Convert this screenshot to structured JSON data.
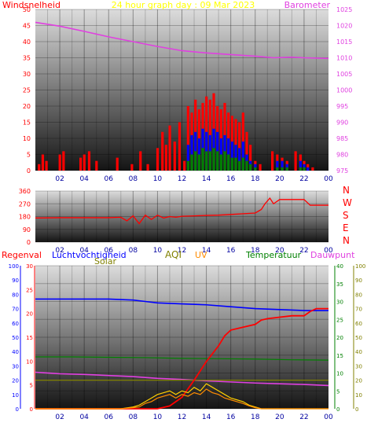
{
  "colors": {
    "wind": "#ff0000",
    "gust": "#0000ff",
    "avg": "#008000",
    "barometer": "#e040e0",
    "direction": "#ff0000",
    "rain": "#ff0000",
    "humidity": "#0000ff",
    "temperature": "#008000",
    "dewpoint": "#e040e0",
    "uv": "#ff8c00",
    "solar": "#808000",
    "aqi": "#808000",
    "title": "#ffff00"
  },
  "chart_data": [
    {
      "type": "bar",
      "title": "24 hour graph day : 09 Mar 2023",
      "left_axis_label": "Windsnelheid",
      "right_axis_label": "Barometer",
      "x_ticks": [
        "02",
        "04",
        "06",
        "08",
        "10",
        "12",
        "14",
        "16",
        "18",
        "20",
        "22",
        "00"
      ],
      "x_range": [
        0,
        24
      ],
      "y_left_ticks": [
        "0",
        "5",
        "10",
        "15",
        "20",
        "25",
        "30",
        "35",
        "40",
        "45",
        "50"
      ],
      "y_left_range": [
        0,
        50
      ],
      "y_right_ticks": [
        "975",
        "980",
        "985",
        "990",
        "995",
        "1000",
        "1005",
        "1010",
        "1015",
        "1020",
        "1025"
      ],
      "y_right_range": [
        975,
        1025
      ],
      "series": [
        {
          "name": "gust",
          "kind": "bars",
          "x": [
            0.3,
            0.6,
            0.9,
            2.0,
            2.3,
            3.7,
            4.0,
            4.4,
            5.0,
            6.7,
            7.9,
            8.6,
            9.2,
            10.0,
            10.4,
            10.7,
            11.0,
            11.4,
            11.8,
            12.2,
            12.5,
            12.8,
            13.1,
            13.4,
            13.7,
            14.0,
            14.3,
            14.6,
            14.9,
            15.2,
            15.5,
            15.8,
            16.1,
            16.4,
            16.7,
            17.0,
            17.3,
            17.6,
            18.0,
            18.4,
            19.4,
            19.8,
            20.2,
            20.6,
            21.3,
            21.7,
            22.0,
            22.3,
            22.7
          ],
          "values": [
            2,
            5,
            3,
            5,
            6,
            4,
            5,
            6,
            3,
            4,
            2,
            6,
            2,
            7,
            12,
            8,
            14,
            9,
            15,
            3,
            20,
            18,
            22,
            19,
            21,
            23,
            22,
            24,
            20,
            19,
            21,
            18,
            17,
            16,
            15,
            18,
            12,
            8,
            3,
            2,
            6,
            5,
            4,
            3,
            6,
            5,
            3,
            2,
            1
          ]
        },
        {
          "name": "wind",
          "kind": "bars",
          "x": [
            12.5,
            12.8,
            13.1,
            13.4,
            13.7,
            14.0,
            14.3,
            14.6,
            14.9,
            15.2,
            15.5,
            15.8,
            16.1,
            16.4,
            16.7,
            17.0,
            17.3,
            17.6,
            18.0,
            19.8,
            20.2,
            20.6,
            21.7,
            22.0,
            22.3
          ],
          "values": [
            8,
            11,
            12,
            10,
            13,
            12,
            11,
            13,
            12,
            10,
            11,
            10,
            9,
            8,
            7,
            9,
            5,
            3,
            2,
            3,
            3,
            2,
            3,
            2,
            1
          ]
        },
        {
          "name": "average",
          "kind": "bars",
          "x": [
            12.5,
            12.8,
            13.1,
            13.4,
            13.7,
            14.0,
            14.3,
            14.6,
            14.9,
            15.2,
            15.5,
            15.8,
            16.1,
            16.4,
            16.7,
            17.0,
            17.3,
            17.6,
            18.0,
            19.8,
            20.2,
            20.6,
            21.7,
            22.0
          ],
          "values": [
            3,
            5,
            6,
            5,
            7,
            6,
            6,
            7,
            6,
            5,
            6,
            5,
            4,
            4,
            3,
            4,
            3,
            2,
            1,
            1,
            1,
            1,
            1,
            1
          ]
        },
        {
          "name": "barometer",
          "kind": "line",
          "axis": "right",
          "x": [
            0,
            2,
            4,
            6,
            8,
            10,
            12,
            14,
            16,
            18,
            19.5,
            21,
            22,
            24
          ],
          "values": [
            1021,
            1019.8,
            1018.2,
            1016.5,
            1015,
            1013.5,
            1012.2,
            1011.5,
            1011,
            1010.5,
            1010,
            1010.2,
            1010,
            1009.8
          ]
        }
      ]
    },
    {
      "type": "line",
      "title": "",
      "right_labels": [
        "N",
        "W",
        "S",
        "E",
        "N"
      ],
      "x_ticks": [
        "02",
        "04",
        "06",
        "08",
        "10",
        "12",
        "14",
        "16",
        "18",
        "20",
        "22",
        "00"
      ],
      "x_range": [
        0,
        24
      ],
      "y_ticks": [
        "0",
        "90",
        "180",
        "270",
        "360"
      ],
      "y_range": [
        0,
        360
      ],
      "series": [
        {
          "name": "direction",
          "x": [
            0,
            2,
            4,
            6,
            7,
            7.5,
            8,
            8.5,
            9,
            9.5,
            10,
            10.5,
            11,
            11.5,
            12,
            13,
            14,
            15,
            16,
            17,
            18,
            18.5,
            18.8,
            19.2,
            19.5,
            20,
            21,
            22,
            22.5,
            24
          ],
          "values": [
            170,
            172,
            172,
            172,
            175,
            150,
            185,
            130,
            190,
            160,
            190,
            170,
            180,
            175,
            182,
            185,
            188,
            190,
            195,
            200,
            205,
            230,
            270,
            310,
            270,
            300,
            300,
            300,
            260,
            260
          ]
        }
      ]
    },
    {
      "type": "line",
      "title": "",
      "labels": {
        "rain": "Regenval",
        "humidity": "Luchtvochtigheid",
        "solar": "Solar",
        "aqi": "AQI",
        "uv": "UV",
        "temperature": "Temperatuur",
        "dewpoint": "Dauwpunt"
      },
      "x_ticks": [
        "02",
        "04",
        "06",
        "08",
        "10",
        "12",
        "14",
        "16",
        "18",
        "20",
        "22",
        "00"
      ],
      "x_range": [
        0,
        24
      ],
      "rain_ticks": [
        "0",
        "10",
        "20",
        "30",
        "40",
        "50",
        "60",
        "70",
        "80",
        "90",
        "100"
      ],
      "rain_range": [
        0,
        100
      ],
      "humidity_ticks": [
        "0",
        "5",
        "10",
        "15",
        "20",
        "25",
        "30"
      ],
      "humidity_range": [
        0,
        30
      ],
      "temp_ticks": [
        "0",
        "5",
        "10",
        "15",
        "20",
        "25",
        "30",
        "35",
        "40"
      ],
      "temp_range": [
        0,
        40
      ],
      "uv_ticks": [
        "0",
        "10",
        "20",
        "30",
        "40",
        "50",
        "60",
        "70",
        "80",
        "90",
        "100"
      ],
      "uv_range": [
        0,
        100
      ],
      "series": [
        {
          "name": "humidity",
          "axis": "humidity",
          "x": [
            0,
            2,
            4,
            6,
            8,
            9,
            10,
            12,
            14,
            16,
            18,
            20,
            22,
            24
          ],
          "values": [
            23,
            23,
            23,
            23,
            22.8,
            22.5,
            22.2,
            22,
            21.8,
            21.4,
            21,
            20.8,
            20.6,
            20.6
          ]
        },
        {
          "name": "temperature",
          "axis": "temp",
          "x": [
            0,
            3,
            6,
            9,
            12,
            15,
            18,
            21,
            24
          ],
          "values": [
            14.5,
            14.5,
            14.4,
            14.3,
            14.1,
            14,
            13.9,
            13.7,
            13.6
          ]
        },
        {
          "name": "dewpoint",
          "axis": "temp",
          "x": [
            0,
            2,
            4,
            6,
            8,
            10,
            12,
            14,
            16,
            18,
            20,
            22,
            24
          ],
          "values": [
            10.2,
            9.8,
            9.6,
            9.3,
            9,
            8.5,
            8.2,
            7.8,
            7.5,
            7.2,
            7,
            6.8,
            6.5
          ]
        },
        {
          "name": "solar",
          "axis": "temp",
          "x": [
            0,
            6,
            7,
            12,
            16,
            18,
            24
          ],
          "values": [
            8,
            8,
            8,
            8,
            8,
            8,
            8
          ]
        },
        {
          "name": "rain",
          "axis": "rain",
          "x": [
            0,
            6,
            8,
            10,
            11,
            12,
            13,
            14,
            15,
            15.5,
            16,
            17,
            18,
            18.5,
            19,
            20,
            21,
            22,
            22.5,
            23,
            24
          ],
          "values": [
            0,
            0,
            0,
            0,
            2,
            8,
            20,
            33,
            44,
            51,
            55,
            57,
            59,
            62,
            63,
            64,
            65,
            65,
            68,
            70,
            70
          ]
        },
        {
          "name": "uv",
          "axis": "temp",
          "x": [
            0,
            7,
            8,
            8.5,
            9,
            9.5,
            10,
            10.5,
            11,
            11.5,
            12,
            12.5,
            13,
            13.5,
            14,
            14.5,
            15,
            15.5,
            16,
            16.5,
            17,
            17.5,
            18,
            18.5,
            24
          ],
          "values": [
            0,
            0,
            0.5,
            1,
            2,
            3,
            4,
            4.5,
            5,
            4,
            5,
            4.5,
            6,
            5,
            7,
            6,
            5,
            4,
            3,
            2.5,
            2,
            1,
            0.5,
            0,
            0
          ]
        },
        {
          "name": "aqi",
          "axis": "temp",
          "x": [
            0,
            7,
            8,
            8.5,
            9,
            9.5,
            10,
            10.5,
            11,
            11.5,
            12,
            12.5,
            13,
            13.5,
            14,
            14.5,
            15,
            15.5,
            16,
            16.5,
            17,
            17.5,
            18,
            18.5,
            24
          ],
          "values": [
            0,
            0,
            0.3,
            0.5,
            1.5,
            2,
            3,
            3.5,
            4,
            3,
            4,
            3.5,
            4.5,
            4,
            5.5,
            4.5,
            4,
            3,
            2.5,
            2,
            1.5,
            0.8,
            0.3,
            0,
            0
          ]
        }
      ]
    }
  ]
}
